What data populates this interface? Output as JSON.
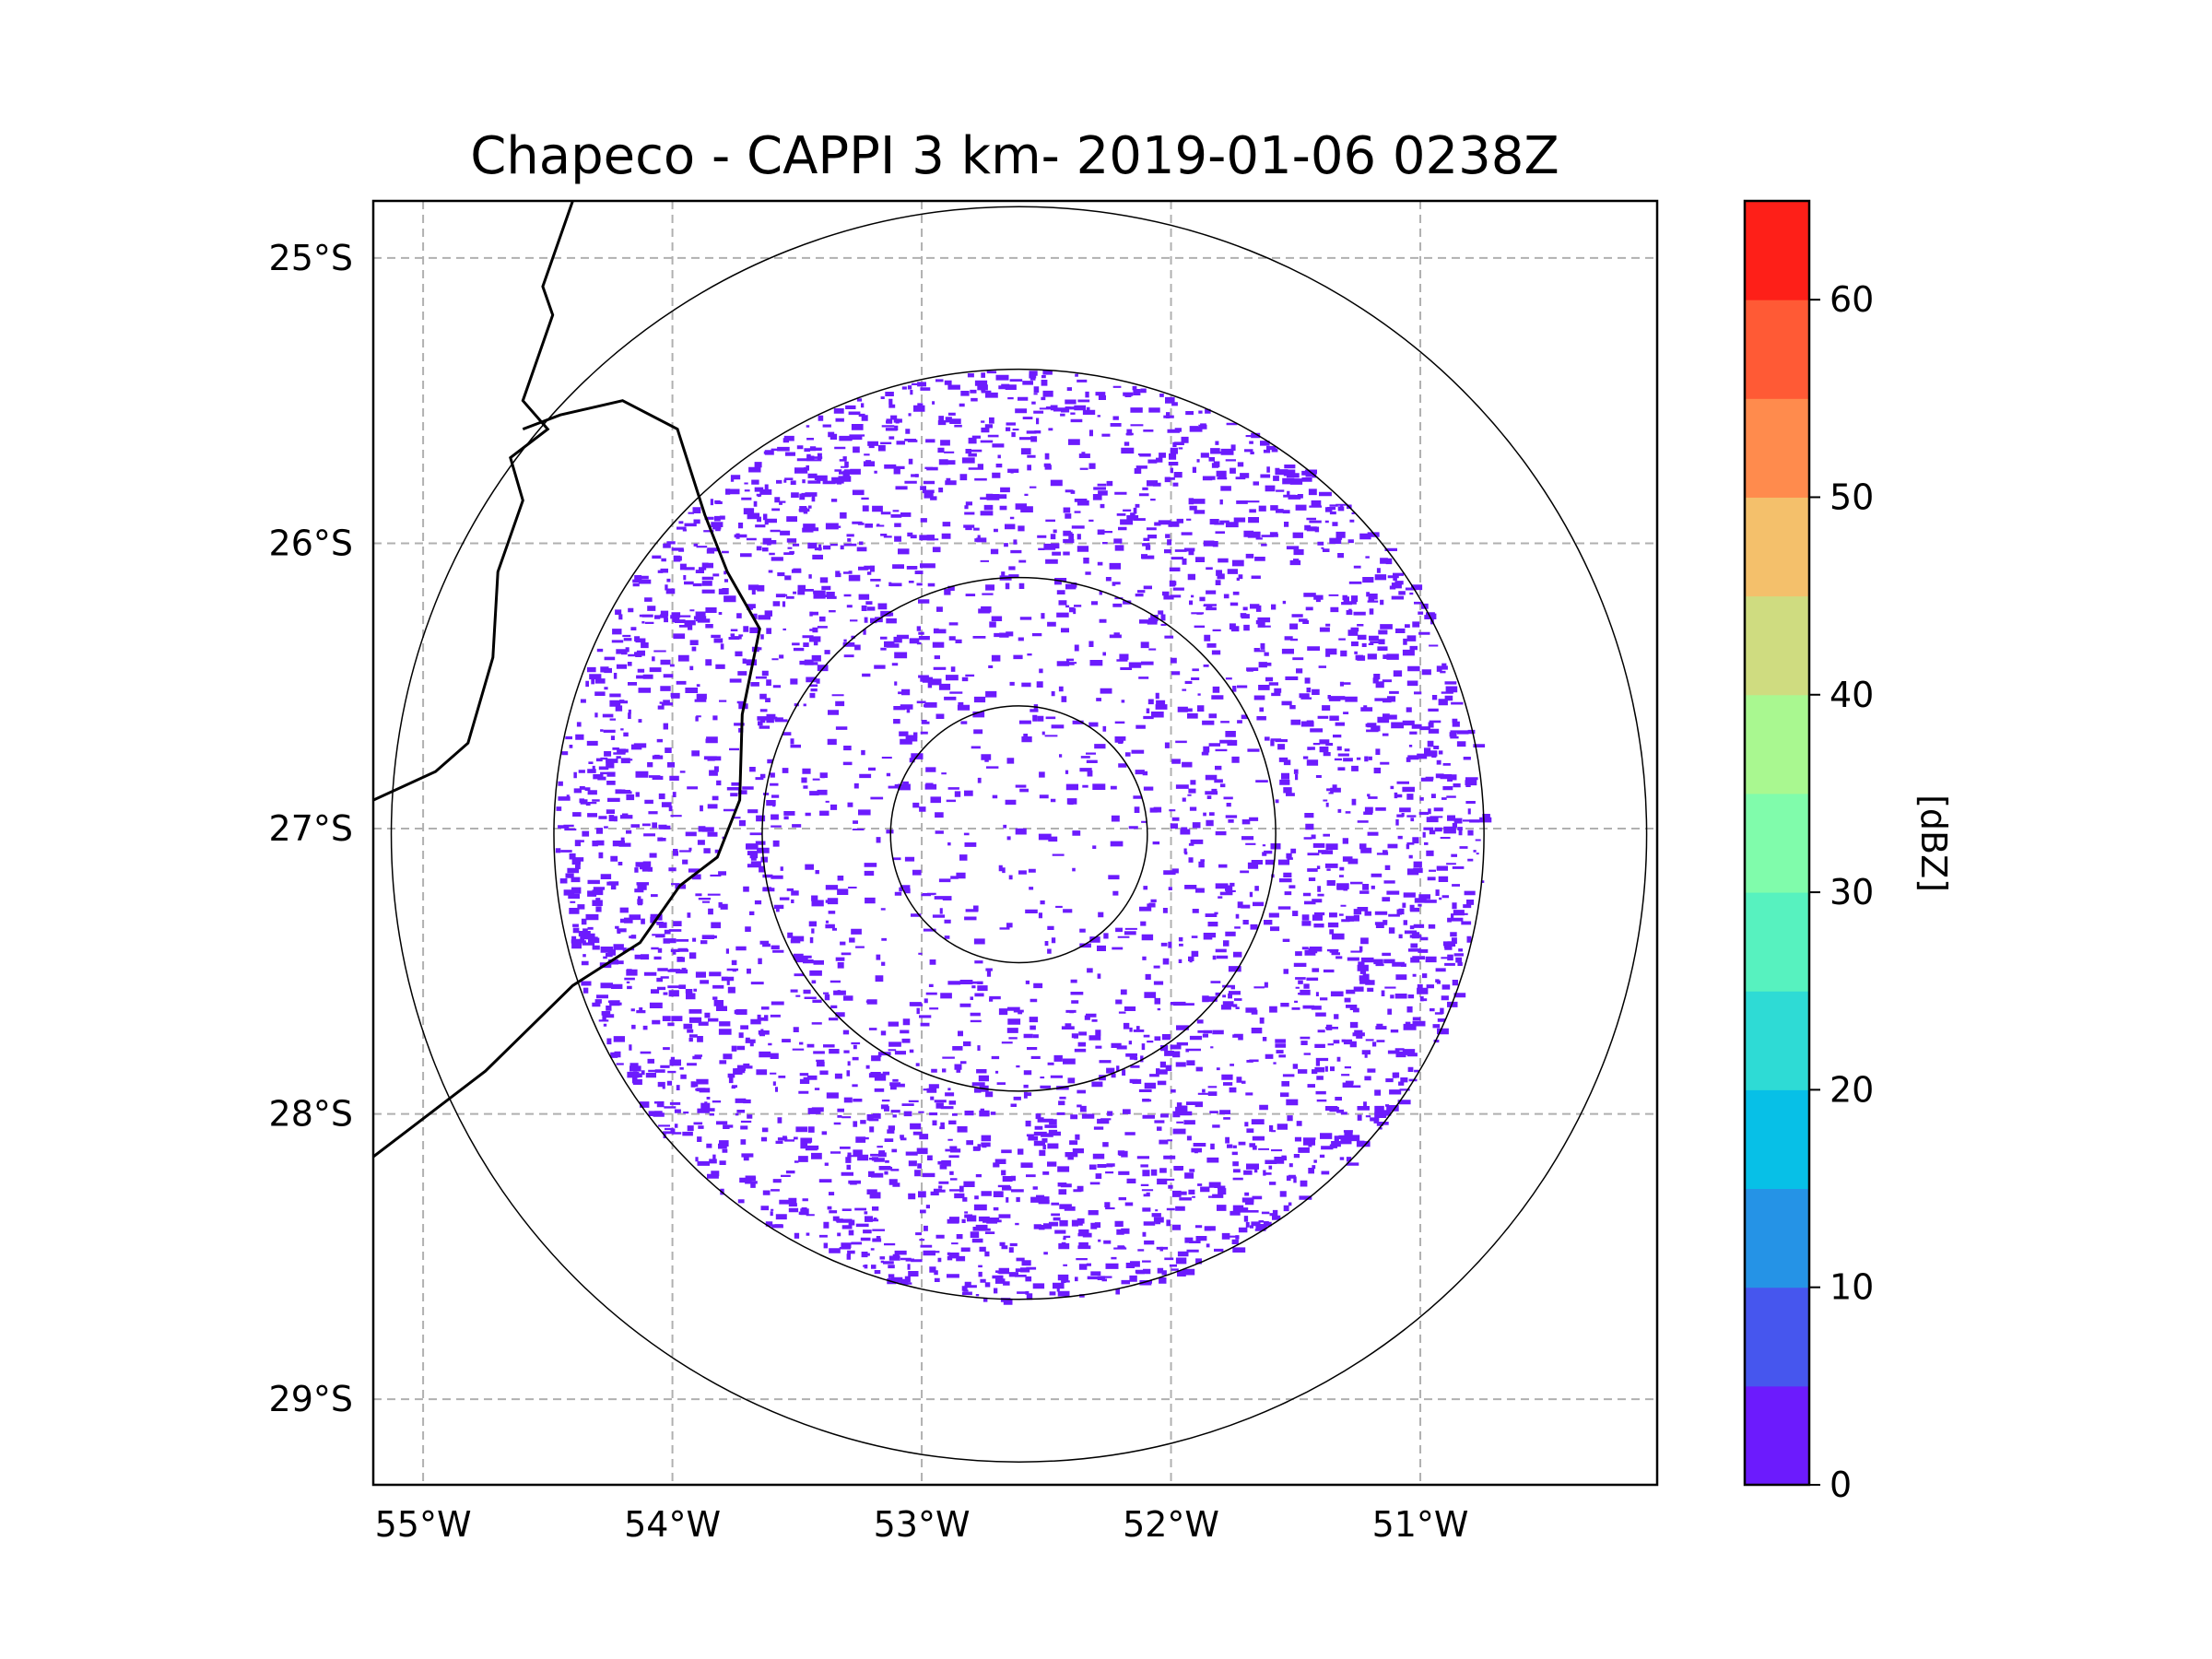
{
  "chart_data": {
    "type": "heatmap",
    "title": "Chapeco - CAPPI 3 km- 2019-01-06 0238Z",
    "projection": "polar radar scan on lat/lon map",
    "lon_range": [
      -55.2,
      -50.05
    ],
    "lat_range": [
      -29.3,
      -24.8
    ],
    "x_ticks": [
      {
        "value": -55,
        "label": "55°W"
      },
      {
        "value": -54,
        "label": "54°W"
      },
      {
        "value": -53,
        "label": "53°W"
      },
      {
        "value": -52,
        "label": "52°W"
      },
      {
        "value": -51,
        "label": "51°W"
      }
    ],
    "y_ticks": [
      {
        "value": -25,
        "label": "25°S"
      },
      {
        "value": -26,
        "label": "26°S"
      },
      {
        "value": -27,
        "label": "27°S"
      },
      {
        "value": -28,
        "label": "28°S"
      },
      {
        "value": -29,
        "label": "29°S"
      }
    ],
    "gridlines": true,
    "radar_center": {
      "lon": -52.61,
      "lat": -27.02
    },
    "range_rings_deg_lat": [
      0.45,
      0.9,
      1.63,
      2.2
    ],
    "data_extent_deg_lat": 1.63,
    "echo_value_dbz": 2,
    "colorbar": {
      "label": "[dBZ]",
      "min": 0,
      "max": 65,
      "ticks": [
        {
          "value": 0,
          "label": "0"
        },
        {
          "value": 10,
          "label": "10"
        },
        {
          "value": 20,
          "label": "20"
        },
        {
          "value": 30,
          "label": "30"
        },
        {
          "value": 40,
          "label": "40"
        },
        {
          "value": 50,
          "label": "50"
        },
        {
          "value": 60,
          "label": "60"
        }
      ],
      "levels": [
        {
          "from": 0,
          "to": 5,
          "color": "#6c1bfd"
        },
        {
          "from": 5,
          "to": 10,
          "color": "#4656ee"
        },
        {
          "from": 10,
          "to": 15,
          "color": "#2593e6"
        },
        {
          "from": 15,
          "to": 20,
          "color": "#07c0e7"
        },
        {
          "from": 20,
          "to": 25,
          "color": "#2edbd5"
        },
        {
          "from": 25,
          "to": 30,
          "color": "#57f2bf"
        },
        {
          "from": 30,
          "to": 35,
          "color": "#80fcab"
        },
        {
          "from": 35,
          "to": 40,
          "color": "#a9f890"
        },
        {
          "from": 40,
          "to": 45,
          "color": "#cfdc80"
        },
        {
          "from": 45,
          "to": 50,
          "color": "#f4c06b"
        },
        {
          "from": 50,
          "to": 55,
          "color": "#ff8b4d"
        },
        {
          "from": 55,
          "to": 60,
          "color": "#ff5a35"
        },
        {
          "from": 60,
          "to": 65,
          "color": "#fe1f18"
        }
      ]
    },
    "borders": [
      {
        "name": "border-paraguay-argentina",
        "points": [
          [
            -54.4,
            -24.8
          ],
          [
            -54.52,
            -25.1
          ],
          [
            -54.48,
            -25.2
          ],
          [
            -54.6,
            -25.5
          ],
          [
            -54.5,
            -25.6
          ],
          [
            -54.65,
            -25.7
          ],
          [
            -54.6,
            -25.85
          ],
          [
            -54.7,
            -26.1
          ],
          [
            -54.72,
            -26.4
          ],
          [
            -54.82,
            -26.7
          ],
          [
            -54.95,
            -26.8
          ],
          [
            -55.2,
            -26.9
          ]
        ]
      },
      {
        "name": "border-argentina-brazil",
        "points": [
          [
            -54.6,
            -25.6
          ],
          [
            -54.45,
            -25.55
          ],
          [
            -54.2,
            -25.5
          ],
          [
            -53.98,
            -25.6
          ],
          [
            -53.87,
            -25.9
          ],
          [
            -53.78,
            -26.1
          ],
          [
            -53.65,
            -26.3
          ],
          [
            -53.72,
            -26.6
          ],
          [
            -53.73,
            -26.9
          ],
          [
            -53.82,
            -27.1
          ],
          [
            -53.97,
            -27.2
          ],
          [
            -54.13,
            -27.4
          ],
          [
            -54.4,
            -27.55
          ],
          [
            -54.75,
            -27.85
          ],
          [
            -55.05,
            -28.05
          ],
          [
            -55.2,
            -28.15
          ]
        ]
      }
    ]
  }
}
